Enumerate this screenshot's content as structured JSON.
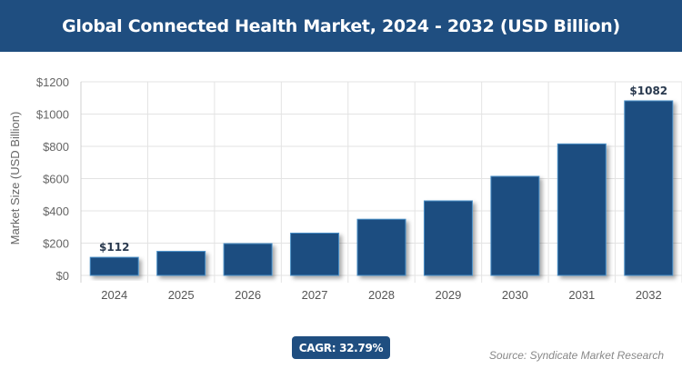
{
  "header": {
    "title": "Global Connected Health Market, 2024 - 2032 (USD Billion)"
  },
  "chart_data": {
    "type": "bar",
    "title": "Global Connected Health Market, 2024 - 2032 (USD Billion)",
    "categories": [
      "2024",
      "2025",
      "2026",
      "2027",
      "2028",
      "2029",
      "2030",
      "2031",
      "2032"
    ],
    "values": [
      112,
      149,
      197,
      262,
      348,
      462,
      614,
      815,
      1082
    ],
    "data_labels": {
      "0": "$112",
      "8": "$1082"
    },
    "ylabel": "Market Size (USD Billion)",
    "xlabel": "",
    "ylim": [
      0,
      1200
    ],
    "yticks": [
      "$0",
      "$200",
      "$400",
      "$600",
      "$800",
      "$1000",
      "$1200"
    ],
    "grid": true,
    "bar_color": "#1f4e80",
    "bar_border": "#4a90c8"
  },
  "footer": {
    "cagr": "CAGR: 32.79%",
    "source": "Source: Syndicate Market Research"
  }
}
